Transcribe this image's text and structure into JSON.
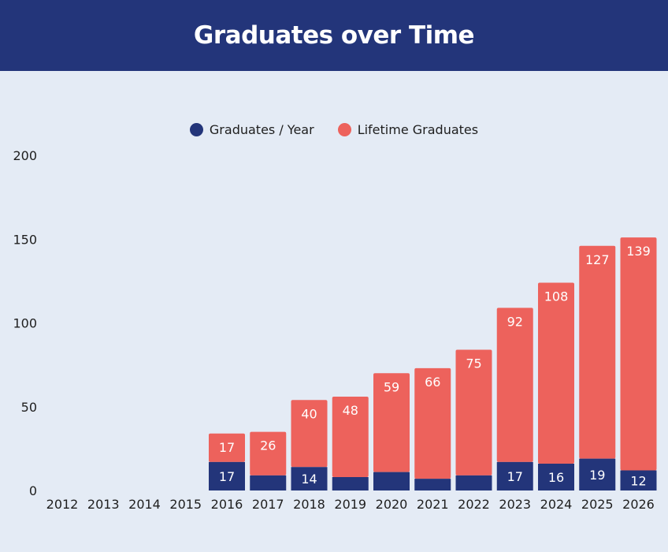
{
  "header": {
    "title": "Graduates over Time"
  },
  "colors": {
    "header_bg": "#23357a",
    "per_year": "#23357a",
    "lifetime": "#ed625c",
    "background": "#e4ebf5"
  },
  "chart_data": {
    "type": "bar",
    "stacked": true,
    "categories": [
      "2012",
      "2013",
      "2014",
      "2015",
      "2016",
      "2017",
      "2018",
      "2019",
      "2020",
      "2021",
      "2022",
      "2023",
      "2024",
      "2025",
      "2026"
    ],
    "series": [
      {
        "name": "Graduates / Year",
        "values": [
          0,
          0,
          0,
          0,
          17,
          9,
          14,
          8,
          11,
          7,
          9,
          17,
          16,
          19,
          12
        ],
        "labels": [
          "",
          "",
          "",
          "",
          "17",
          "",
          "14",
          "",
          "",
          "",
          "",
          "17",
          "16",
          "19",
          "12"
        ]
      },
      {
        "name": "Lifetime Graduates",
        "values": [
          0,
          0,
          0,
          0,
          17,
          26,
          40,
          48,
          59,
          66,
          75,
          92,
          108,
          127,
          139
        ],
        "labels": [
          "",
          "",
          "",
          "",
          "17",
          "26",
          "40",
          "48",
          "59",
          "66",
          "75",
          "92",
          "108",
          "127",
          "139"
        ]
      }
    ],
    "yticks": [
      0,
      50,
      100,
      150,
      200
    ],
    "ylim": [
      0,
      200
    ],
    "legend_position": "top-center",
    "grid": false
  }
}
